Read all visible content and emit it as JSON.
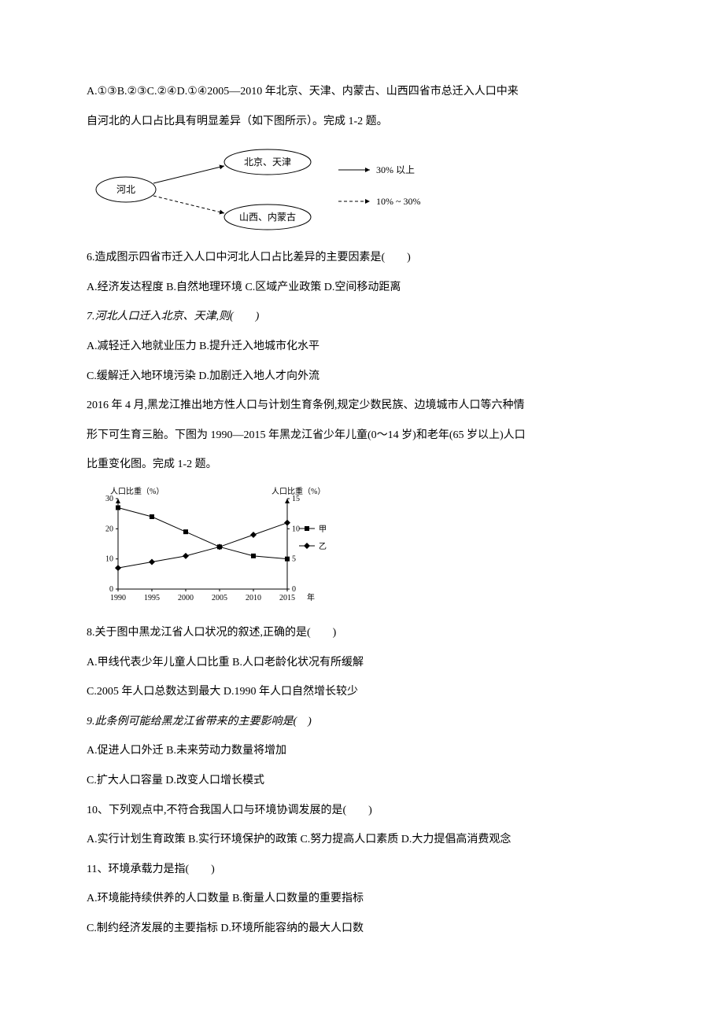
{
  "intro": {
    "option_line": "A.①③B.②③C.②④D.①④2005—2010 年北京、天津、内蒙古、山西四省市总迁入人口中来",
    "option_line2": "自河北的人口占比具有明显差异（如下图所示）。完成 1-2 题。"
  },
  "flow": {
    "left": "河北",
    "top": "北京、天津",
    "bottom": "山西、内蒙古",
    "solid_label": "30% 以上",
    "dashed_label": "10% ~ 30%",
    "node_stroke": "#000000",
    "bg": "#ffffff",
    "solid_style": "solid",
    "dashed_style": "dashed",
    "font_size": 12
  },
  "q6": {
    "stem": "6.造成图示四省市迁入人口中河北人口占比差异的主要因素是(　　)",
    "opts": "A.经济发达程度 B.自然地理环境 C.区域产业政策 D.空间移动距离"
  },
  "q7": {
    "stem": "7.河北人口迁入北京、天津,则(　　)",
    "optA": "A.减轻迁入地就业压力 B.提升迁入地城市化水平",
    "optB": "C.缓解迁入地环境污染 D.加剧迁入地人才向外流"
  },
  "para8_intro": {
    "l1": "2016 年 4 月,黑龙江推出地方性人口与计划生育条例,规定少数民族、边境城市人口等六种情",
    "l2": "形下可生育三胎。下图为 1990—2015 年黑龙江省少年儿童(0～14 岁)和老年(65 岁以上)人口",
    "l3": "比重变化图。完成 1-2 题。"
  },
  "chart": {
    "type": "line",
    "xlabel": "年",
    "ylabel_left": "人口比重（%）",
    "ylabel_right": "人口比重（%）",
    "x_ticks": [
      "1990",
      "1995",
      "2000",
      "2005",
      "2010",
      "2015"
    ],
    "y_left_ticks": [
      0,
      10,
      20,
      30
    ],
    "y_right_ticks": [
      0,
      5,
      10,
      15
    ],
    "ylim_left": [
      0,
      30
    ],
    "ylim_right": [
      0,
      15
    ],
    "series": [
      {
        "name": "甲",
        "marker": "square",
        "color": "#000000",
        "axis": "left",
        "values": [
          27,
          24,
          19,
          14,
          11,
          10
        ]
      },
      {
        "name": "乙",
        "marker": "diamond",
        "color": "#000000",
        "axis": "right",
        "values": [
          3.5,
          4.5,
          5.5,
          7,
          9,
          11
        ]
      }
    ],
    "legend_labels": [
      "甲",
      "乙"
    ],
    "background_color": "#ffffff",
    "axis_color": "#000000",
    "font_size": 10,
    "line_width": 1
  },
  "q8": {
    "stem": "8.关于图中黑龙江省人口状况的叙述,正确的是(　　)",
    "A": "A.甲线代表少年儿童人口比重 B.人口老龄化状况有所缓解",
    "B": "C.2005 年人口总数达到最大 D.1990 年人口自然增长较少"
  },
  "q9": {
    "stem": "9.此条例可能给黑龙江省带来的主要影响是(　)",
    "A": "A.促进人口外迁 B.未来劳动力数量将增加",
    "B": "C.扩大人口容量 D.改变人口增长模式"
  },
  "q10": {
    "stem": "10、下列观点中,不符合我国人口与环境协调发展的是(　　)",
    "opts": "A.实行计划生育政策 B.实行环境保护的政策 C.努力提高人口素质 D.大力提倡高消费观念"
  },
  "q11": {
    "stem": "11、环境承载力是指(　　)",
    "A": "A.环境能持续供养的人口数量 B.衡量人口数量的重要指标",
    "B": "C.制约经济发展的主要指标 D.环境所能容纳的最大人口数"
  }
}
